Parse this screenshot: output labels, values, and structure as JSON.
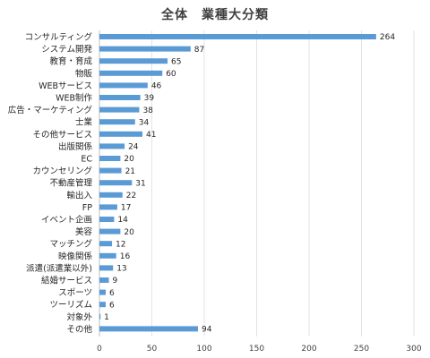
{
  "chart_data": {
    "type": "bar",
    "orientation": "horizontal",
    "title": "全体　業種大分類",
    "categories": [
      "コンサルティング",
      "システム開発",
      "教育・育成",
      "物販",
      "WEBサービス",
      "WEB制作",
      "広告・マーケティング",
      "士業",
      "その他サービス",
      "出版関係",
      "EC",
      "カウンセリング",
      "不動産管理",
      "輸出入",
      "FP",
      "イベント企画",
      "美容",
      "マッチング",
      "映像関係",
      "派遣(派遣業以外)",
      "結婚サービス",
      "スポーツ",
      "ツーリズム",
      "対象外",
      "その他"
    ],
    "values": [
      264,
      87,
      65,
      60,
      46,
      39,
      38,
      34,
      41,
      24,
      20,
      21,
      31,
      22,
      17,
      14,
      20,
      12,
      16,
      13,
      9,
      6,
      6,
      1,
      94
    ],
    "xlim": [
      0,
      300
    ],
    "xticks": [
      0,
      50,
      100,
      150,
      200,
      250,
      300
    ],
    "grid": true,
    "bar_color": "#5B9BD5"
  }
}
